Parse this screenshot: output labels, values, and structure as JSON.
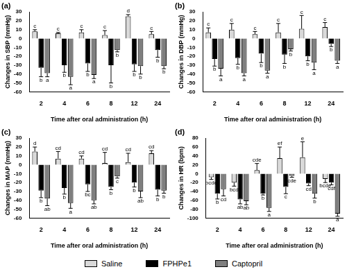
{
  "chart_data": [
    {
      "type": "bar",
      "title": "(a)",
      "x_label": "Time after oral administration (h)",
      "y_label": "Changes in SBP (mmHg)",
      "categories": [
        2,
        4,
        6,
        8,
        12,
        24
      ],
      "ylim": [
        -60,
        30
      ],
      "yticks": [
        -60,
        -50,
        -40,
        -30,
        -20,
        -10,
        0,
        10,
        20,
        30
      ],
      "grid": false,
      "legend": "bottom",
      "series": [
        {
          "name": "Saline",
          "color": "#d9d9d9",
          "values": [
            8,
            6,
            7,
            4,
            25,
            5
          ],
          "errors": [
            2,
            1,
            3,
            5,
            2,
            3
          ],
          "letters": [
            "c",
            "c",
            "c",
            "c",
            "d",
            "c"
          ]
        },
        {
          "name": "FPHPe1",
          "color": "#000000",
          "values": [
            -33,
            -30,
            -28,
            -30,
            -29,
            -13
          ],
          "errors": [
            10,
            8,
            9,
            20,
            8,
            8
          ],
          "letters": [
            "b",
            "b",
            "b",
            "b",
            "b",
            "b"
          ]
        },
        {
          "name": "Captopril",
          "color": "#7f7f7f",
          "values": [
            -39,
            -43,
            -41,
            -13,
            -31,
            -31
          ],
          "errors": [
            4,
            9,
            4,
            2,
            9,
            3
          ],
          "letters": [
            "a",
            "a",
            "a",
            "b",
            "b",
            "b"
          ]
        }
      ]
    },
    {
      "type": "bar",
      "title": "(b)",
      "x_label": "Time after oral administration (h)",
      "y_label": "Changes in DBP (mmHg)",
      "categories": [
        2,
        4,
        6,
        8,
        12,
        24
      ],
      "ylim": [
        -60,
        30
      ],
      "yticks": [
        -60,
        -50,
        -40,
        -30,
        -20,
        -10,
        0,
        10,
        20,
        30
      ],
      "grid": false,
      "series": [
        {
          "name": "Saline",
          "color": "#d9d9d9",
          "values": [
            7,
            10,
            5,
            7,
            11,
            13
          ],
          "errors": [
            5,
            7,
            3,
            10,
            15,
            5
          ],
          "letters": [
            "c",
            "c",
            "c",
            "c",
            "c",
            "c"
          ]
        },
        {
          "name": "FPHPe1",
          "color": "#000000",
          "values": [
            -23,
            -22,
            -17,
            -18,
            -20,
            -6
          ],
          "errors": [
            8,
            7,
            10,
            10,
            5,
            3
          ],
          "letters": [
            "b",
            "b",
            "b",
            "b",
            "b",
            "b"
          ]
        },
        {
          "name": "Captopril",
          "color": "#7f7f7f",
          "values": [
            -34,
            -39,
            -36,
            -12,
            -27,
            -25
          ],
          "errors": [
            8,
            3,
            3,
            2,
            8,
            3
          ],
          "letters": [
            "a",
            "a",
            "a",
            "b",
            "a",
            "a"
          ]
        }
      ]
    },
    {
      "type": "bar",
      "title": "(c)",
      "x_label": "Time after oral administration (h)",
      "y_label": "Changes in MAP (mmHg)",
      "categories": [
        2,
        4,
        6,
        8,
        12,
        24
      ],
      "ylim": [
        -60,
        30
      ],
      "yticks": [
        -60,
        -50,
        -40,
        -30,
        -20,
        -10,
        0,
        10,
        20,
        30
      ],
      "grid": false,
      "series": [
        {
          "name": "Saline",
          "color": "#d9d9d9",
          "values": [
            15,
            7,
            7,
            2,
            3,
            13
          ],
          "errors": [
            5,
            8,
            3,
            12,
            10,
            3
          ],
          "letters": [
            "d",
            "cd",
            "cd",
            "cd",
            "cd",
            "cd"
          ]
        },
        {
          "name": "FPHPe1",
          "color": "#000000",
          "values": [
            -29,
            -26,
            -22,
            -25,
            -20,
            -28
          ],
          "errors": [
            8,
            7,
            8,
            3,
            5,
            7
          ],
          "letters": [
            "b",
            "b",
            "bc",
            "b",
            "b",
            "b"
          ]
        },
        {
          "name": "Captopril",
          "color": "#7f7f7f",
          "values": [
            -38,
            -43,
            -40,
            -13,
            -30,
            -29
          ],
          "errors": [
            8,
            6,
            4,
            2,
            7,
            3
          ],
          "letters": [
            "ab",
            "a",
            "ab",
            "c",
            "ab",
            "b"
          ]
        }
      ]
    },
    {
      "type": "bar",
      "title": "(d)",
      "x_label": "Time after oral administration (h)",
      "y_label": "Changes in HR (bpm)",
      "categories": [
        2,
        4,
        6,
        8,
        12,
        24
      ],
      "ylim": [
        -100,
        80
      ],
      "yticks": [
        -100,
        -80,
        -60,
        -40,
        -20,
        0,
        20,
        40,
        60,
        80
      ],
      "grid": false,
      "series": [
        {
          "name": "Saline",
          "color": "#d9d9d9",
          "values": [
            -8,
            -20,
            8,
            35,
            37,
            -12
          ],
          "errors": [
            5,
            8,
            15,
            25,
            35,
            8
          ],
          "letters": [
            "bcde",
            "bcd",
            "cde",
            "ef",
            "e",
            "bcde"
          ]
        },
        {
          "name": "FPHPe1",
          "color": "#000000",
          "values": [
            -45,
            -58,
            -45,
            -30,
            -22,
            -20
          ],
          "errors": [
            12,
            10,
            3,
            15,
            5,
            5
          ],
          "letters": [
            "b",
            "ab",
            "b",
            "c",
            "cd",
            "cdf"
          ]
        },
        {
          "name": "Captopril",
          "color": "#7f7f7f",
          "values": [
            -35,
            -62,
            -77,
            -5,
            -45,
            -90
          ],
          "errors": [
            15,
            8,
            8,
            3,
            10,
            6
          ],
          "letters": [
            "cd",
            "ab",
            "a",
            "cde",
            "b",
            "a"
          ]
        }
      ]
    }
  ]
}
